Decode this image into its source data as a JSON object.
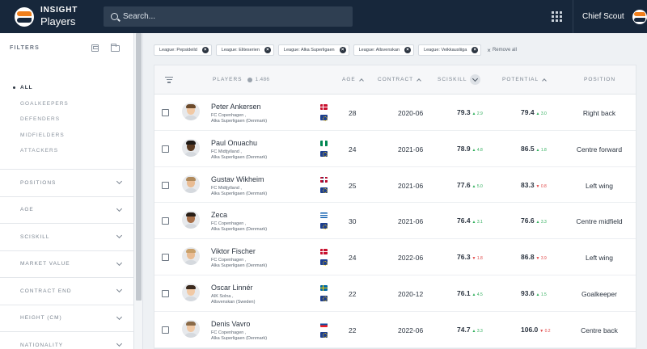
{
  "app": {
    "brand_name": "INSIGHT",
    "section": "Players"
  },
  "search": {
    "placeholder": "Search..."
  },
  "user": {
    "name": "Chief Scout"
  },
  "sidebar": {
    "title": "FILTERS",
    "positions": [
      {
        "label": "ALL",
        "active": true
      },
      {
        "label": "GOALKEEPERS",
        "active": false
      },
      {
        "label": "DEFENDERS",
        "active": false
      },
      {
        "label": "MIDFIELDERS",
        "active": false
      },
      {
        "label": "ATTACKERS",
        "active": false
      }
    ],
    "groups": [
      "POSITIONS",
      "AGE",
      "SCISKILL",
      "MARKET VALUE",
      "CONTRACT END",
      "HEIGHT (CM)",
      "NATIONALITY"
    ]
  },
  "chips": {
    "items": [
      "League: Pepsideild",
      "League: Eliteserien",
      "League: Alka Superligaen",
      "League: Allsvenskan",
      "League: Veikkausliiga"
    ],
    "remove_all": "Remove all"
  },
  "table": {
    "headers": {
      "players": "PLAYERS",
      "count": "1.486",
      "age": "AGE",
      "contract": "CONTRACT",
      "sciskill": "SCISKILL",
      "potential": "POTENTIAL",
      "position": "POSITION"
    },
    "rows": [
      {
        "name": "Peter Ankersen",
        "club": "FC Copenhagen ,",
        "league": "Alka Superligaen (Denmark)",
        "nationality": "dk",
        "age": "28",
        "contract": "2020-06",
        "sciskill": "79.3",
        "sciskill_delta": "2.9",
        "sciskill_dir": "up",
        "potential": "79.4",
        "potential_delta": "3.0",
        "potential_dir": "up",
        "position": "Right back",
        "skin": "skin-a",
        "hair": "#6b4a2b"
      },
      {
        "name": "Paul Onuachu",
        "club": "FC Midtjylland ,",
        "league": "Alka Superligaen (Denmark)",
        "nationality": "ng",
        "age": "24",
        "contract": "2021-06",
        "sciskill": "78.9",
        "sciskill_delta": "4.8",
        "sciskill_dir": "up",
        "potential": "86.5",
        "potential_delta": "1.8",
        "potential_dir": "up",
        "position": "Centre forward",
        "skin": "skin-b",
        "hair": "#1f1a17"
      },
      {
        "name": "Gustav Wikheim",
        "club": "FC Midtjylland ,",
        "league": "Alka Superligaen (Denmark)",
        "nationality": "no",
        "age": "25",
        "contract": "2021-06",
        "sciskill": "77.6",
        "sciskill_delta": "5.0",
        "sciskill_dir": "up",
        "potential": "83.3",
        "potential_delta": "0.8",
        "potential_dir": "down",
        "position": "Left wing",
        "skin": "skin-c",
        "hair": "#b08a5c"
      },
      {
        "name": "Zeca",
        "club": "FC Copenhagen ,",
        "league": "Alka Superligaen (Denmark)",
        "nationality": "gr",
        "age": "30",
        "contract": "2021-06",
        "sciskill": "76.4",
        "sciskill_delta": "3.1",
        "sciskill_dir": "up",
        "potential": "76.6",
        "potential_delta": "3.3",
        "potential_dir": "up",
        "position": "Centre midfield",
        "skin": "skin-d",
        "hair": "#2a1f18"
      },
      {
        "name": "Viktor Fischer",
        "club": "FC Copenhagen ,",
        "league": "Alka Superligaen (Denmark)",
        "nationality": "dk",
        "age": "24",
        "contract": "2022-06",
        "sciskill": "76.3",
        "sciskill_delta": "1.8",
        "sciskill_dir": "down",
        "potential": "86.8",
        "potential_delta": "3.9",
        "potential_dir": "down",
        "position": "Left wing",
        "skin": "skin-c",
        "hair": "#c9a06a"
      },
      {
        "name": "Oscar Linnér",
        "club": "AIK Solna ,",
        "league": "Allsvenskan (Sweden)",
        "nationality": "se",
        "age": "22",
        "contract": "2020-12",
        "sciskill": "76.1",
        "sciskill_delta": "4.5",
        "sciskill_dir": "up",
        "potential": "93.6",
        "potential_delta": "1.5",
        "potential_dir": "up",
        "position": "Goalkeeper",
        "skin": "skin-a",
        "hair": "#3b2a1e"
      },
      {
        "name": "Denis Vavro",
        "club": "FC Copenhagen ,",
        "league": "Alka Superligaen (Denmark)",
        "nationality": "sk",
        "age": "22",
        "contract": "2022-06",
        "sciskill": "74.7",
        "sciskill_delta": "3.3",
        "sciskill_dir": "up",
        "potential": "106.0",
        "potential_delta": "0.2",
        "potential_dir": "down",
        "position": "Centre back",
        "skin": "skin-a",
        "hair": "#8a6a48"
      }
    ]
  }
}
